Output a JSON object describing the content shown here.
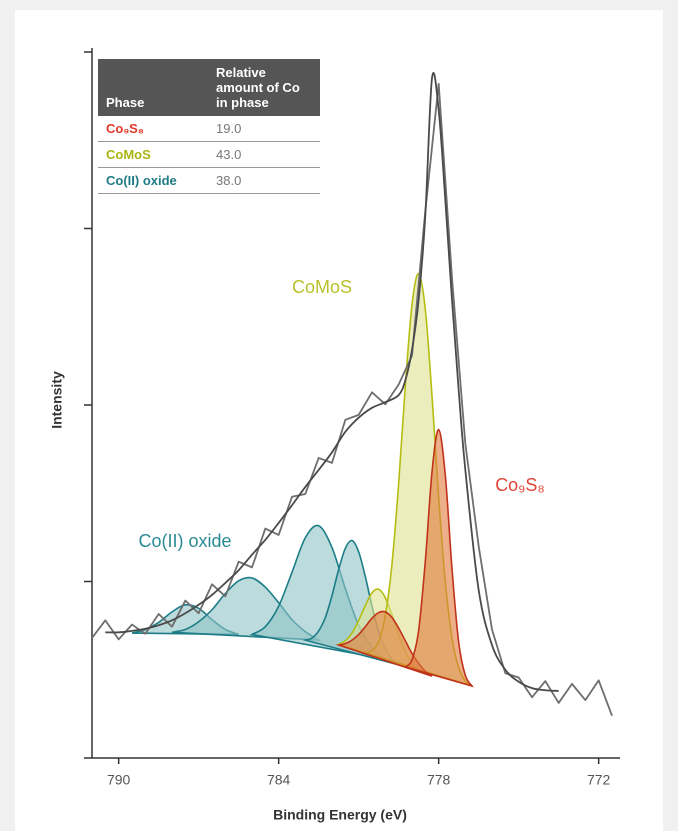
{
  "chart_data": {
    "type": "line",
    "xlabel": "Binding Energy (eV)",
    "ylabel": "Intensity",
    "xlim": [
      791,
      771.2
    ],
    "xticks": [
      790,
      784,
      778,
      772
    ],
    "ylim": [
      0,
      100
    ],
    "yticks": [
      0,
      25,
      50,
      75,
      100
    ],
    "annotations": [
      {
        "text": "CoMoS",
        "color": "#b9c22a"
      },
      {
        "text": "Co₉S₈",
        "color": "#e0443a"
      },
      {
        "text": "Co(II) oxide",
        "color": "#2a8a94"
      }
    ],
    "table": {
      "columns": [
        "Phase",
        "Relative amount of Co in phase"
      ],
      "rows": [
        {
          "phase": "Co₉S₈",
          "amount": "19.0",
          "color": "#e0392b"
        },
        {
          "phase": "CoMoS",
          "amount": "43.0",
          "color": "#aab514"
        },
        {
          "phase": "Co(II) oxide",
          "amount": "38.0",
          "color": "#1f7c86"
        }
      ]
    },
    "series": [
      {
        "color": "#1c7d87",
        "fill": "#8fc3c7",
        "smooth": true,
        "x": [
          789.5,
          789,
          788.5,
          788,
          787.5,
          787,
          786.5,
          786,
          785.5
        ],
        "values": [
          17.7,
          18.2,
          19.2,
          20.7,
          21.7,
          21.2,
          19.6,
          18.2,
          17.5
        ]
      },
      {
        "color": "#1c7d87",
        "fill": "#8fc3c7",
        "smooth": true,
        "x": [
          788,
          787.5,
          787,
          786.5,
          786,
          785.5,
          785,
          784.5,
          784,
          783.5,
          783,
          782.5
        ],
        "values": [
          17.8,
          18.2,
          19.3,
          21.0,
          23.3,
          25.1,
          25.5,
          24.2,
          22.0,
          19.6,
          17.9,
          16.7
        ]
      },
      {
        "color": "#1c7d87",
        "fill": "#8fc3c7",
        "smooth": true,
        "x": [
          785,
          784.5,
          784,
          783.5,
          783,
          782.5,
          782,
          781.5,
          781,
          780.5,
          780
        ],
        "values": [
          17.5,
          18.6,
          21.5,
          26.3,
          31.2,
          32.9,
          29.8,
          24.0,
          18.8,
          15.7,
          14.0
        ]
      },
      {
        "color": "#1c7d87",
        "fill": "#8fc3c7",
        "smooth": true,
        "x": [
          783,
          782.75,
          782.5,
          782.25,
          782,
          781.75,
          781.5,
          781.25,
          781,
          780.75,
          780.5,
          780.25,
          780,
          779.75,
          779.5
        ],
        "values": [
          16.7,
          17.0,
          18.0,
          19.9,
          23.0,
          26.7,
          29.7,
          30.8,
          29.2,
          25.7,
          21.5,
          17.9,
          15.5,
          14.0,
          13.2
        ]
      },
      {
        "color": "#b5bd12",
        "fill": "#dde28f",
        "smooth": true,
        "x": [
          781.75,
          781.5,
          781.25,
          781,
          780.75,
          780.5,
          780.25,
          780,
          779.75,
          779.5,
          779.25,
          779,
          778.75
        ],
        "values": [
          16.1,
          16.6,
          17.7,
          19.5,
          21.6,
          23.4,
          23.9,
          22.7,
          20.3,
          17.5,
          15.1,
          13.4,
          12.4
        ]
      },
      {
        "color": "#b5bd12",
        "fill": "#dde28f",
        "smooth": true,
        "x": [
          780.75,
          780.5,
          780.25,
          780,
          779.75,
          779.5,
          779.25,
          779,
          778.75,
          778.5,
          778.25,
          778,
          777.75,
          777.5,
          777.25,
          777,
          776.75
        ],
        "values": [
          14.9,
          15.2,
          16.5,
          20.2,
          27.5,
          38.9,
          52.7,
          64.2,
          68.6,
          63.5,
          51.3,
          36.9,
          24.9,
          17.0,
          12.8,
          10.9,
          10.2
        ]
      },
      {
        "color": "#c0321a",
        "fill": "#e07a3c",
        "smooth": true,
        "x": [
          781.75,
          781.5,
          781.25,
          781,
          780.75,
          780.5,
          780.25,
          780,
          779.75,
          779.5,
          779.25,
          779,
          778.75,
          778.5,
          778.25
        ],
        "values": [
          16.0,
          16.2,
          16.7,
          17.5,
          18.6,
          19.8,
          20.6,
          20.7,
          19.9,
          18.4,
          16.6,
          14.8,
          13.4,
          12.3,
          11.6
        ]
      },
      {
        "color": "#c0321a",
        "fill": "#e07a3c",
        "smooth": true,
        "x": [
          779.25,
          779,
          778.75,
          778.5,
          778.25,
          778,
          777.75,
          777.5,
          777.25,
          777,
          776.75
        ],
        "values": [
          12.9,
          13.9,
          18.1,
          27.9,
          40.5,
          46.5,
          40.0,
          26.8,
          16.4,
          11.7,
          10.2
        ]
      },
      {
        "color": "#6e6e6e",
        "fill": null,
        "smooth": false,
        "x": [
          791,
          790.5,
          790,
          789.5,
          789,
          788.5,
          788,
          787.5,
          787,
          786.5,
          786,
          785.5,
          785,
          784.5,
          784,
          783.5,
          783,
          782.5,
          782,
          781.5,
          781,
          780.5,
          780,
          779.5,
          779,
          778.5,
          778,
          777.5,
          777,
          776.5,
          776,
          775.5,
          775,
          774.5,
          774,
          773.5,
          773,
          772.5,
          772,
          771.5
        ],
        "values": [
          17.0,
          19.5,
          16.8,
          18.9,
          17.6,
          20.4,
          18.6,
          22.3,
          20.5,
          24.6,
          22.9,
          27.8,
          27.0,
          32.5,
          31.6,
          37.0,
          37.4,
          42.5,
          41.8,
          47.9,
          48.6,
          51.8,
          50.1,
          52.9,
          57.0,
          77.5,
          95.5,
          68.0,
          44.5,
          30.0,
          18.2,
          12.0,
          11.4,
          8.6,
          10.9,
          7.8,
          10.5,
          8.2,
          11.0,
          6.0
        ]
      },
      {
        "color": "#4a4a4a",
        "fill": null,
        "smooth": true,
        "x": [
          790.5,
          790,
          789.5,
          789,
          788.5,
          788,
          787.5,
          787,
          786.5,
          786,
          785.5,
          785,
          784.5,
          784,
          783.5,
          783,
          782.5,
          782,
          781.5,
          781,
          780.5,
          780,
          779.5,
          779.25,
          779,
          778.75,
          778.5,
          778.25,
          778,
          777.75,
          777.5,
          777.25,
          777,
          776.5,
          776,
          775.5,
          775,
          774.5,
          774,
          773.5
        ],
        "values": [
          17.8,
          17.8,
          18.0,
          18.3,
          18.8,
          19.5,
          20.5,
          21.7,
          23.1,
          24.8,
          26.6,
          28.8,
          30.9,
          33.3,
          35.8,
          38.4,
          40.8,
          43.3,
          46.2,
          48.2,
          49.6,
          50.4,
          51.4,
          53.5,
          57.8,
          64.9,
          76.9,
          96.3,
          91.8,
          79.0,
          64.9,
          52.1,
          40.8,
          23.8,
          16.0,
          12.5,
          10.8,
          9.9,
          9.6,
          9.5
        ]
      }
    ]
  }
}
